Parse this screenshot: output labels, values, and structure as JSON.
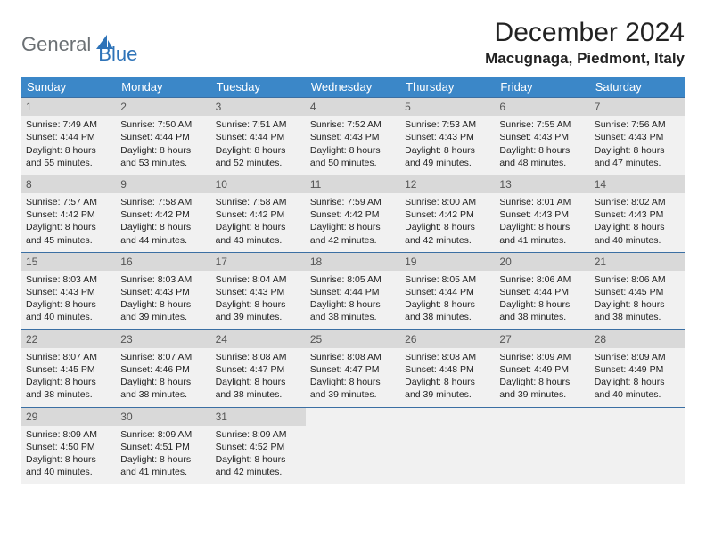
{
  "logo": {
    "part1": "General",
    "part2": "Blue"
  },
  "title": "December 2024",
  "location": "Macugnaga, Piedmont, Italy",
  "colors": {
    "header_bg": "#3b87c8",
    "header_fg": "#ffffff",
    "row_sep": "#3b6fa3",
    "cell_bg": "#f1f1f1",
    "daynum_bg": "#d9d9d9",
    "logo_gray": "#6b7074",
    "logo_blue": "#2e73b8"
  },
  "weekdays": [
    "Sunday",
    "Monday",
    "Tuesday",
    "Wednesday",
    "Thursday",
    "Friday",
    "Saturday"
  ],
  "weeks": [
    [
      {
        "day": "1",
        "sunrise": "Sunrise: 7:49 AM",
        "sunset": "Sunset: 4:44 PM",
        "daylight": "Daylight: 8 hours and 55 minutes."
      },
      {
        "day": "2",
        "sunrise": "Sunrise: 7:50 AM",
        "sunset": "Sunset: 4:44 PM",
        "daylight": "Daylight: 8 hours and 53 minutes."
      },
      {
        "day": "3",
        "sunrise": "Sunrise: 7:51 AM",
        "sunset": "Sunset: 4:44 PM",
        "daylight": "Daylight: 8 hours and 52 minutes."
      },
      {
        "day": "4",
        "sunrise": "Sunrise: 7:52 AM",
        "sunset": "Sunset: 4:43 PM",
        "daylight": "Daylight: 8 hours and 50 minutes."
      },
      {
        "day": "5",
        "sunrise": "Sunrise: 7:53 AM",
        "sunset": "Sunset: 4:43 PM",
        "daylight": "Daylight: 8 hours and 49 minutes."
      },
      {
        "day": "6",
        "sunrise": "Sunrise: 7:55 AM",
        "sunset": "Sunset: 4:43 PM",
        "daylight": "Daylight: 8 hours and 48 minutes."
      },
      {
        "day": "7",
        "sunrise": "Sunrise: 7:56 AM",
        "sunset": "Sunset: 4:43 PM",
        "daylight": "Daylight: 8 hours and 47 minutes."
      }
    ],
    [
      {
        "day": "8",
        "sunrise": "Sunrise: 7:57 AM",
        "sunset": "Sunset: 4:42 PM",
        "daylight": "Daylight: 8 hours and 45 minutes."
      },
      {
        "day": "9",
        "sunrise": "Sunrise: 7:58 AM",
        "sunset": "Sunset: 4:42 PM",
        "daylight": "Daylight: 8 hours and 44 minutes."
      },
      {
        "day": "10",
        "sunrise": "Sunrise: 7:58 AM",
        "sunset": "Sunset: 4:42 PM",
        "daylight": "Daylight: 8 hours and 43 minutes."
      },
      {
        "day": "11",
        "sunrise": "Sunrise: 7:59 AM",
        "sunset": "Sunset: 4:42 PM",
        "daylight": "Daylight: 8 hours and 42 minutes."
      },
      {
        "day": "12",
        "sunrise": "Sunrise: 8:00 AM",
        "sunset": "Sunset: 4:42 PM",
        "daylight": "Daylight: 8 hours and 42 minutes."
      },
      {
        "day": "13",
        "sunrise": "Sunrise: 8:01 AM",
        "sunset": "Sunset: 4:43 PM",
        "daylight": "Daylight: 8 hours and 41 minutes."
      },
      {
        "day": "14",
        "sunrise": "Sunrise: 8:02 AM",
        "sunset": "Sunset: 4:43 PM",
        "daylight": "Daylight: 8 hours and 40 minutes."
      }
    ],
    [
      {
        "day": "15",
        "sunrise": "Sunrise: 8:03 AM",
        "sunset": "Sunset: 4:43 PM",
        "daylight": "Daylight: 8 hours and 40 minutes."
      },
      {
        "day": "16",
        "sunrise": "Sunrise: 8:03 AM",
        "sunset": "Sunset: 4:43 PM",
        "daylight": "Daylight: 8 hours and 39 minutes."
      },
      {
        "day": "17",
        "sunrise": "Sunrise: 8:04 AM",
        "sunset": "Sunset: 4:43 PM",
        "daylight": "Daylight: 8 hours and 39 minutes."
      },
      {
        "day": "18",
        "sunrise": "Sunrise: 8:05 AM",
        "sunset": "Sunset: 4:44 PM",
        "daylight": "Daylight: 8 hours and 38 minutes."
      },
      {
        "day": "19",
        "sunrise": "Sunrise: 8:05 AM",
        "sunset": "Sunset: 4:44 PM",
        "daylight": "Daylight: 8 hours and 38 minutes."
      },
      {
        "day": "20",
        "sunrise": "Sunrise: 8:06 AM",
        "sunset": "Sunset: 4:44 PM",
        "daylight": "Daylight: 8 hours and 38 minutes."
      },
      {
        "day": "21",
        "sunrise": "Sunrise: 8:06 AM",
        "sunset": "Sunset: 4:45 PM",
        "daylight": "Daylight: 8 hours and 38 minutes."
      }
    ],
    [
      {
        "day": "22",
        "sunrise": "Sunrise: 8:07 AM",
        "sunset": "Sunset: 4:45 PM",
        "daylight": "Daylight: 8 hours and 38 minutes."
      },
      {
        "day": "23",
        "sunrise": "Sunrise: 8:07 AM",
        "sunset": "Sunset: 4:46 PM",
        "daylight": "Daylight: 8 hours and 38 minutes."
      },
      {
        "day": "24",
        "sunrise": "Sunrise: 8:08 AM",
        "sunset": "Sunset: 4:47 PM",
        "daylight": "Daylight: 8 hours and 38 minutes."
      },
      {
        "day": "25",
        "sunrise": "Sunrise: 8:08 AM",
        "sunset": "Sunset: 4:47 PM",
        "daylight": "Daylight: 8 hours and 39 minutes."
      },
      {
        "day": "26",
        "sunrise": "Sunrise: 8:08 AM",
        "sunset": "Sunset: 4:48 PM",
        "daylight": "Daylight: 8 hours and 39 minutes."
      },
      {
        "day": "27",
        "sunrise": "Sunrise: 8:09 AM",
        "sunset": "Sunset: 4:49 PM",
        "daylight": "Daylight: 8 hours and 39 minutes."
      },
      {
        "day": "28",
        "sunrise": "Sunrise: 8:09 AM",
        "sunset": "Sunset: 4:49 PM",
        "daylight": "Daylight: 8 hours and 40 minutes."
      }
    ],
    [
      {
        "day": "29",
        "sunrise": "Sunrise: 8:09 AM",
        "sunset": "Sunset: 4:50 PM",
        "daylight": "Daylight: 8 hours and 40 minutes."
      },
      {
        "day": "30",
        "sunrise": "Sunrise: 8:09 AM",
        "sunset": "Sunset: 4:51 PM",
        "daylight": "Daylight: 8 hours and 41 minutes."
      },
      {
        "day": "31",
        "sunrise": "Sunrise: 8:09 AM",
        "sunset": "Sunset: 4:52 PM",
        "daylight": "Daylight: 8 hours and 42 minutes."
      },
      null,
      null,
      null,
      null
    ]
  ]
}
